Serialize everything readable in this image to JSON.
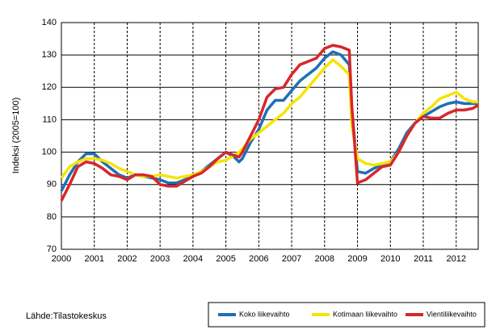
{
  "chart_data": {
    "type": "line",
    "y_label": "Indeksi (2005=100)",
    "source": "Lähde:Tilastokeskus",
    "x": [
      2000,
      2000.25,
      2000.5,
      2000.75,
      2001,
      2001.25,
      2001.5,
      2001.75,
      2002,
      2002.25,
      2002.5,
      2002.75,
      2003,
      2003.25,
      2003.5,
      2003.75,
      2004,
      2004.25,
      2004.5,
      2004.75,
      2005,
      2005.25,
      2005.4,
      2005.5,
      2005.75,
      2006,
      2006.25,
      2006.5,
      2006.75,
      2007,
      2007.25,
      2007.5,
      2007.75,
      2008,
      2008.25,
      2008.5,
      2008.75,
      2008.83,
      2009,
      2009.25,
      2009.5,
      2009.75,
      2010,
      2010.25,
      2010.5,
      2010.75,
      2011,
      2011.25,
      2011.5,
      2011.75,
      2012,
      2012.25,
      2012.5,
      2012.67
    ],
    "series": [
      {
        "name": "Koko liikevaihto",
        "color": "#1f6fb5",
        "values": [
          88,
          93,
          97,
          99.5,
          99.5,
          97,
          95,
          93,
          92,
          93,
          92.5,
          92,
          91.5,
          90.5,
          90.5,
          91.5,
          92.5,
          94,
          96,
          98,
          100,
          98.5,
          97,
          98,
          103,
          107,
          113,
          116,
          116,
          119,
          122,
          124,
          126,
          129,
          131,
          130,
          127,
          113,
          94,
          93.5,
          95,
          96,
          97,
          101,
          106,
          109,
          111,
          112.5,
          114,
          115,
          115.5,
          115,
          115,
          115
        ]
      },
      {
        "name": "Kotimaan liikevaihto",
        "color": "#f5e400",
        "values": [
          92,
          95.5,
          97,
          98,
          98,
          97.5,
          96.5,
          95,
          94,
          93,
          92.5,
          92.5,
          93,
          92.5,
          92,
          92.5,
          93,
          94,
          95.5,
          97,
          97.5,
          99,
          100,
          101,
          104,
          106,
          108,
          110,
          112,
          115,
          117,
          120,
          123,
          126,
          128.5,
          126.5,
          124,
          108,
          98,
          96.5,
          96,
          96.5,
          97,
          100,
          105,
          109,
          112,
          114,
          116.5,
          117.5,
          118.5,
          116.5,
          115.5,
          115.5
        ]
      },
      {
        "name": "Vientiliikevaihto",
        "color": "#d9262b",
        "values": [
          85,
          90,
          95.5,
          97,
          96.5,
          95,
          93,
          92.5,
          91.5,
          93,
          93,
          92.5,
          90,
          89.5,
          89.5,
          91,
          92.5,
          93.5,
          95.5,
          98,
          100,
          99,
          98.5,
          100,
          105,
          110,
          117,
          119.5,
          120,
          124,
          127,
          128,
          129,
          132,
          133,
          132.5,
          131.5,
          114,
          90.5,
          91.5,
          93.5,
          95.5,
          96,
          100,
          105,
          109,
          111,
          110.5,
          110.5,
          112,
          113,
          113,
          113.5,
          114.5
        ]
      }
    ],
    "xlim": [
      2000,
      2012.67
    ],
    "xticks": [
      2000,
      2001,
      2002,
      2003,
      2004,
      2005,
      2006,
      2007,
      2008,
      2009,
      2010,
      2011,
      2012
    ],
    "ylim": [
      70,
      140
    ],
    "yticks": [
      70,
      80,
      90,
      100,
      110,
      120,
      130,
      140
    ],
    "grid": true,
    "legend": "bottom-right"
  }
}
